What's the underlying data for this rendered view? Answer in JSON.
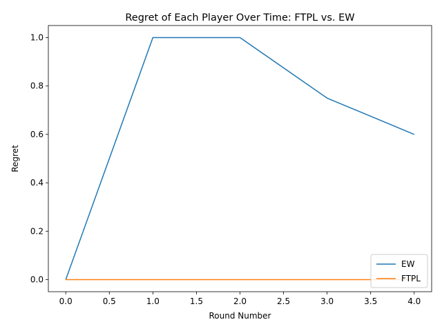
{
  "chart_data": {
    "type": "line",
    "title": "Regret of Each Player Over Time: FTPL vs. EW",
    "xlabel": "Round Number",
    "ylabel": "Regret",
    "xlim": [
      -0.2,
      4.2
    ],
    "ylim": [
      -0.05,
      1.05
    ],
    "xticks": [
      "0.0",
      "0.5",
      "1.0",
      "1.5",
      "2.0",
      "2.5",
      "3.0",
      "3.5",
      "4.0"
    ],
    "yticks": [
      "0.0",
      "0.2",
      "0.4",
      "0.6",
      "0.8",
      "1.0"
    ],
    "x": [
      0,
      1,
      2,
      3,
      4
    ],
    "series": [
      {
        "name": "EW",
        "color": "#1f77b4",
        "values": [
          0.0,
          1.0,
          1.0,
          0.75,
          0.6
        ]
      },
      {
        "name": "FTPL",
        "color": "#ff7f0e",
        "values": [
          0.0,
          0.0,
          0.0,
          0.0,
          0.0
        ]
      }
    ],
    "grid": false,
    "legend_position": "lower-right"
  }
}
